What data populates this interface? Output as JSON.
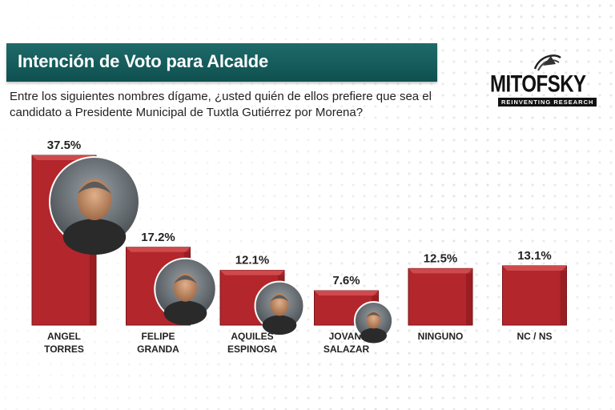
{
  "header": {
    "title": "Intención de Voto para Alcalde",
    "question": "Entre los siguientes nombres dígame, ¿usted quién de ellos prefiere que sea el candidato a Presidente Municipal de Tuxtla Gutiérrez por Morena?"
  },
  "logo": {
    "brand": "MITOFSKY",
    "tagline": "REINVENTING RESEARCH"
  },
  "colors": {
    "bar": "#b3262b",
    "bar_top": "#cf4a4d",
    "bar_edge": "#7a1519",
    "title_bg": "#145c5c"
  },
  "chart_data": {
    "type": "bar",
    "categories": [
      "ANGEL\nTORRES",
      "FELIPE\nGRANDA",
      "AQUILES\nESPINOSA",
      "JOVANI\nSALAZAR",
      "NINGUNO",
      "NC / NS"
    ],
    "values": [
      37.5,
      17.2,
      12.1,
      7.6,
      12.5,
      13.1
    ],
    "value_labels": [
      "37.5%",
      "17.2%",
      "12.1%",
      "7.6%",
      "12.5%",
      "13.1%"
    ],
    "photos": [
      true,
      true,
      true,
      true,
      false,
      false
    ],
    "ylim": [
      0,
      37.5
    ],
    "grid": false,
    "legend": "none"
  }
}
